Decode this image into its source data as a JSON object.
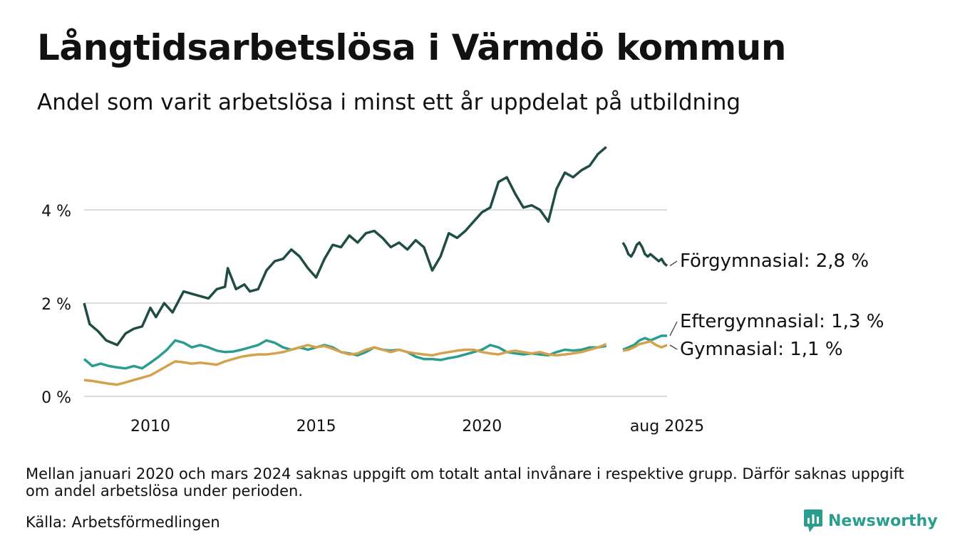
{
  "header": {
    "title": "Långtidsarbetslösa i Värmdö kommun",
    "subtitle": "Andel som varit arbetslösa i minst ett år uppdelat på utbildning"
  },
  "footer": {
    "note": "Mellan januari 2020 och mars 2024 saknas uppgift om totalt antal invånare i respektive grupp. Därför saknas uppgift om andel arbetslösa under perioden.",
    "source": "Källa: Arbetsförmedlingen",
    "brand": "Newsworthy"
  },
  "colors": {
    "forgymnasial": "#1f4d45",
    "eftergymnasial": "#2a9d8f",
    "gymnasial": "#d4a24c",
    "grid": "#dddddd",
    "brand": "#2a9d8f"
  },
  "chart_data": {
    "type": "line",
    "ylim": [
      0,
      6
    ],
    "yticks": [
      {
        "value": 0,
        "label": "0 %"
      },
      {
        "value": 2,
        "label": "2 %"
      },
      {
        "value": 4,
        "label": "4 %"
      }
    ],
    "xticks": [
      {
        "value": "2010-01",
        "label": "2010"
      },
      {
        "value": "2015-01",
        "label": "2015"
      },
      {
        "value": "2020-01",
        "label": "2020"
      },
      {
        "value": "2025-08",
        "label": "aug 2025"
      }
    ],
    "grid": true,
    "series": [
      {
        "name": "Förgymnasial",
        "end_label": "Förgymnasial: 2,8 %",
        "color_key": "forgymnasial",
        "segments": [
          [
            [
              "2008-01",
              2.0
            ],
            [
              "2008-03",
              1.55
            ],
            [
              "2008-06",
              1.4
            ],
            [
              "2008-09",
              1.2
            ],
            [
              "2009-01",
              1.1
            ],
            [
              "2009-04",
              1.35
            ],
            [
              "2009-07",
              1.45
            ],
            [
              "2009-10",
              1.5
            ],
            [
              "2010-01",
              1.9
            ],
            [
              "2010-03",
              1.7
            ],
            [
              "2010-06",
              2.0
            ],
            [
              "2010-09",
              1.8
            ],
            [
              "2011-01",
              2.25
            ],
            [
              "2011-04",
              2.2
            ],
            [
              "2011-07",
              2.15
            ],
            [
              "2011-10",
              2.1
            ],
            [
              "2012-01",
              2.3
            ],
            [
              "2012-04",
              2.35
            ],
            [
              "2012-05",
              2.75
            ],
            [
              "2012-08",
              2.3
            ],
            [
              "2012-11",
              2.4
            ],
            [
              "2013-01",
              2.25
            ],
            [
              "2013-04",
              2.3
            ],
            [
              "2013-07",
              2.7
            ],
            [
              "2013-10",
              2.9
            ],
            [
              "2014-01",
              2.95
            ],
            [
              "2014-04",
              3.15
            ],
            [
              "2014-07",
              3.0
            ],
            [
              "2014-10",
              2.75
            ],
            [
              "2015-01",
              2.55
            ],
            [
              "2015-04",
              2.95
            ],
            [
              "2015-07",
              3.25
            ],
            [
              "2015-10",
              3.2
            ],
            [
              "2016-01",
              3.45
            ],
            [
              "2016-04",
              3.3
            ],
            [
              "2016-07",
              3.5
            ],
            [
              "2016-10",
              3.55
            ],
            [
              "2017-01",
              3.4
            ],
            [
              "2017-04",
              3.2
            ],
            [
              "2017-07",
              3.3
            ],
            [
              "2017-10",
              3.15
            ],
            [
              "2018-01",
              3.35
            ],
            [
              "2018-04",
              3.2
            ],
            [
              "2018-07",
              2.7
            ],
            [
              "2018-10",
              3.0
            ],
            [
              "2019-01",
              3.5
            ],
            [
              "2019-04",
              3.4
            ],
            [
              "2019-07",
              3.55
            ],
            [
              "2019-10",
              3.75
            ],
            [
              "2020-01",
              3.95
            ],
            [
              "2020-04",
              4.05
            ],
            [
              "2020-07",
              4.6
            ],
            [
              "2020-10",
              4.7
            ],
            [
              "2021-01",
              4.35
            ],
            [
              "2021-04",
              4.05
            ],
            [
              "2021-07",
              4.1
            ],
            [
              "2021-10",
              4.0
            ],
            [
              "2022-01",
              3.75
            ],
            [
              "2022-04",
              4.45
            ],
            [
              "2022-07",
              4.8
            ],
            [
              "2022-10",
              4.7
            ],
            [
              "2023-01",
              4.85
            ],
            [
              "2023-04",
              4.95
            ],
            [
              "2023-07",
              5.2
            ],
            [
              "2023-10",
              5.35
            ]
          ],
          [
            [
              "2024-04",
              3.3
            ],
            [
              "2024-05",
              3.2
            ],
            [
              "2024-06",
              3.05
            ],
            [
              "2024-07",
              3.0
            ],
            [
              "2024-08",
              3.1
            ],
            [
              "2024-09",
              3.25
            ],
            [
              "2024-10",
              3.3
            ],
            [
              "2024-11",
              3.2
            ],
            [
              "2024-12",
              3.05
            ],
            [
              "2025-01",
              3.0
            ],
            [
              "2025-02",
              3.05
            ],
            [
              "2025-03",
              3.0
            ],
            [
              "2025-04",
              2.95
            ],
            [
              "2025-05",
              2.9
            ],
            [
              "2025-06",
              2.95
            ],
            [
              "2025-07",
              2.85
            ],
            [
              "2025-08",
              2.8
            ]
          ]
        ]
      },
      {
        "name": "Eftergymnasial",
        "end_label": "Eftergymnasial: 1,3 %",
        "color_key": "eftergymnasial",
        "segments": [
          [
            [
              "2008-01",
              0.8
            ],
            [
              "2008-04",
              0.65
            ],
            [
              "2008-07",
              0.7
            ],
            [
              "2008-10",
              0.65
            ],
            [
              "2009-01",
              0.62
            ],
            [
              "2009-04",
              0.6
            ],
            [
              "2009-07",
              0.65
            ],
            [
              "2009-10",
              0.6
            ],
            [
              "2010-01",
              0.72
            ],
            [
              "2010-04",
              0.85
            ],
            [
              "2010-07",
              1.0
            ],
            [
              "2010-10",
              1.2
            ],
            [
              "2011-01",
              1.15
            ],
            [
              "2011-04",
              1.05
            ],
            [
              "2011-07",
              1.1
            ],
            [
              "2011-10",
              1.05
            ],
            [
              "2012-01",
              0.98
            ],
            [
              "2012-04",
              0.95
            ],
            [
              "2012-07",
              0.96
            ],
            [
              "2012-10",
              1.0
            ],
            [
              "2013-01",
              1.05
            ],
            [
              "2013-04",
              1.1
            ],
            [
              "2013-07",
              1.2
            ],
            [
              "2013-10",
              1.15
            ],
            [
              "2014-01",
              1.05
            ],
            [
              "2014-04",
              1.0
            ],
            [
              "2014-07",
              1.05
            ],
            [
              "2014-10",
              1.0
            ],
            [
              "2015-01",
              1.05
            ],
            [
              "2015-04",
              1.1
            ],
            [
              "2015-07",
              1.05
            ],
            [
              "2015-10",
              0.95
            ],
            [
              "2016-01",
              0.92
            ],
            [
              "2016-04",
              0.88
            ],
            [
              "2016-07",
              0.95
            ],
            [
              "2016-10",
              1.05
            ],
            [
              "2017-01",
              1.0
            ],
            [
              "2017-04",
              0.98
            ],
            [
              "2017-07",
              1.0
            ],
            [
              "2017-10",
              0.95
            ],
            [
              "2018-01",
              0.85
            ],
            [
              "2018-04",
              0.8
            ],
            [
              "2018-07",
              0.8
            ],
            [
              "2018-10",
              0.78
            ],
            [
              "2019-01",
              0.82
            ],
            [
              "2019-04",
              0.85
            ],
            [
              "2019-07",
              0.9
            ],
            [
              "2019-10",
              0.95
            ],
            [
              "2020-01",
              1.0
            ],
            [
              "2020-04",
              1.1
            ],
            [
              "2020-07",
              1.05
            ],
            [
              "2020-10",
              0.95
            ],
            [
              "2021-01",
              0.92
            ],
            [
              "2021-04",
              0.9
            ],
            [
              "2021-07",
              0.92
            ],
            [
              "2021-10",
              0.9
            ],
            [
              "2022-01",
              0.88
            ],
            [
              "2022-04",
              0.95
            ],
            [
              "2022-07",
              1.0
            ],
            [
              "2022-10",
              0.98
            ],
            [
              "2023-01",
              1.0
            ],
            [
              "2023-04",
              1.05
            ],
            [
              "2023-07",
              1.05
            ],
            [
              "2023-10",
              1.08
            ]
          ],
          [
            [
              "2024-04",
              1.0
            ],
            [
              "2024-06",
              1.05
            ],
            [
              "2024-08",
              1.1
            ],
            [
              "2024-10",
              1.2
            ],
            [
              "2024-12",
              1.25
            ],
            [
              "2025-02",
              1.2
            ],
            [
              "2025-04",
              1.25
            ],
            [
              "2025-06",
              1.3
            ],
            [
              "2025-08",
              1.3
            ]
          ]
        ]
      },
      {
        "name": "Gymnasial",
        "end_label": "Gymnasial: 1,1 %",
        "color_key": "gymnasial",
        "segments": [
          [
            [
              "2008-01",
              0.35
            ],
            [
              "2008-04",
              0.33
            ],
            [
              "2008-07",
              0.3
            ],
            [
              "2008-10",
              0.27
            ],
            [
              "2009-01",
              0.25
            ],
            [
              "2009-04",
              0.3
            ],
            [
              "2009-07",
              0.35
            ],
            [
              "2009-10",
              0.4
            ],
            [
              "2010-01",
              0.45
            ],
            [
              "2010-04",
              0.55
            ],
            [
              "2010-07",
              0.65
            ],
            [
              "2010-10",
              0.75
            ],
            [
              "2011-01",
              0.73
            ],
            [
              "2011-04",
              0.7
            ],
            [
              "2011-07",
              0.72
            ],
            [
              "2011-10",
              0.7
            ],
            [
              "2012-01",
              0.68
            ],
            [
              "2012-04",
              0.75
            ],
            [
              "2012-07",
              0.8
            ],
            [
              "2012-10",
              0.85
            ],
            [
              "2013-01",
              0.88
            ],
            [
              "2013-04",
              0.9
            ],
            [
              "2013-07",
              0.9
            ],
            [
              "2013-10",
              0.92
            ],
            [
              "2014-01",
              0.95
            ],
            [
              "2014-04",
              1.0
            ],
            [
              "2014-07",
              1.05
            ],
            [
              "2014-10",
              1.1
            ],
            [
              "2015-01",
              1.05
            ],
            [
              "2015-04",
              1.08
            ],
            [
              "2015-07",
              1.02
            ],
            [
              "2015-10",
              0.95
            ],
            [
              "2016-01",
              0.9
            ],
            [
              "2016-04",
              0.92
            ],
            [
              "2016-07",
              1.0
            ],
            [
              "2016-10",
              1.05
            ],
            [
              "2017-01",
              1.0
            ],
            [
              "2017-04",
              0.95
            ],
            [
              "2017-07",
              1.0
            ],
            [
              "2017-10",
              0.95
            ],
            [
              "2018-01",
              0.92
            ],
            [
              "2018-04",
              0.9
            ],
            [
              "2018-07",
              0.88
            ],
            [
              "2018-10",
              0.92
            ],
            [
              "2019-01",
              0.95
            ],
            [
              "2019-04",
              0.98
            ],
            [
              "2019-07",
              1.0
            ],
            [
              "2019-10",
              1.0
            ],
            [
              "2020-01",
              0.95
            ],
            [
              "2020-04",
              0.92
            ],
            [
              "2020-07",
              0.9
            ],
            [
              "2020-10",
              0.95
            ],
            [
              "2021-01",
              0.98
            ],
            [
              "2021-04",
              0.95
            ],
            [
              "2021-07",
              0.92
            ],
            [
              "2021-10",
              0.95
            ],
            [
              "2022-01",
              0.9
            ],
            [
              "2022-04",
              0.88
            ],
            [
              "2022-07",
              0.9
            ],
            [
              "2022-10",
              0.92
            ],
            [
              "2023-01",
              0.95
            ],
            [
              "2023-04",
              1.0
            ],
            [
              "2023-07",
              1.05
            ],
            [
              "2023-10",
              1.12
            ]
          ],
          [
            [
              "2024-04",
              0.98
            ],
            [
              "2024-06",
              1.0
            ],
            [
              "2024-08",
              1.05
            ],
            [
              "2024-10",
              1.12
            ],
            [
              "2024-12",
              1.15
            ],
            [
              "2025-02",
              1.18
            ],
            [
              "2025-04",
              1.1
            ],
            [
              "2025-06",
              1.05
            ],
            [
              "2025-08",
              1.1
            ]
          ]
        ]
      }
    ]
  }
}
